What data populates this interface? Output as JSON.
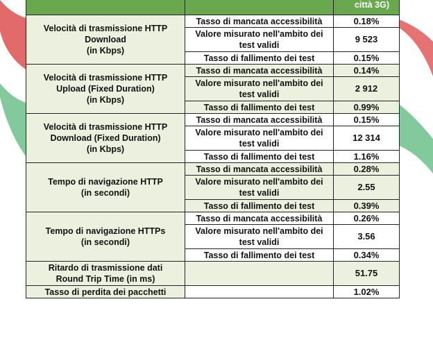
{
  "header": {
    "right_partial": "città 3G)"
  },
  "rows": [
    {
      "metric_lines": [
        "Velocità di trasmissione HTTP",
        "Download",
        "(in Kbps)"
      ],
      "sub": [
        {
          "label": "Tasso di mancata accessibilità",
          "value": "0.18%"
        },
        {
          "label": "Valore misurato nell'ambito dei test validi",
          "value": "9 523"
        },
        {
          "label": "Tasso di fallimento dei test",
          "value": "0.15%"
        }
      ]
    },
    {
      "metric_lines": [
        "Velocità di trasmissione HTTP",
        "Upload (Fixed Duration)",
        "(in Kbps)"
      ],
      "sub": [
        {
          "label": "Tasso di mancata accessibilità",
          "value": "0.14%"
        },
        {
          "label": "Valore misurato nell'ambito dei test validi",
          "value": "2 912"
        },
        {
          "label": "Tasso di fallimento dei test",
          "value": "0.99%"
        }
      ]
    },
    {
      "metric_lines": [
        "Velocità di trasmissione HTTP",
        "Download (Fixed Duration)",
        "(in Kbps)"
      ],
      "sub": [
        {
          "label": "Tasso di mancata accessibilità",
          "value": "0.15%"
        },
        {
          "label": "Valore misurato nell'ambito dei test validi",
          "value": "12 314"
        },
        {
          "label": "Tasso di fallimento dei test",
          "value": "1.16%"
        }
      ]
    },
    {
      "metric_lines": [
        "Tempo di navigazione HTTP",
        "(in secondi)"
      ],
      "sub": [
        {
          "label": "Tasso di mancata accessibilità",
          "value": "0.28%"
        },
        {
          "label": "Valore misurato nell'ambito dei test validi",
          "value": "2.55"
        },
        {
          "label": "Tasso di fallimento dei test",
          "value": "0.39%"
        }
      ]
    },
    {
      "metric_lines": [
        "Tempo di navigazione HTTPs",
        "(in secondi)"
      ],
      "sub": [
        {
          "label": "Tasso di mancata accessibilità",
          "value": "0.26%"
        },
        {
          "label": "Valore misurato nell'ambito dei test validi",
          "value": "3.56"
        },
        {
          "label": "Tasso di fallimento dei test",
          "value": "0.34%"
        }
      ]
    }
  ],
  "single_rows": [
    {
      "metric_lines": [
        "Ritardo di trasmissione dati",
        "Round Trip Time (in ms)"
      ],
      "value": "51.75"
    },
    {
      "metric_lines": [
        "Tasso di perdita dei pacchetti"
      ],
      "value": "1.02%"
    }
  ],
  "colors": {
    "header_green": "#6aa84f",
    "row_shade": "#ebf1de",
    "swoosh_red": "#e05a5a",
    "swoosh_green": "#6cc08a"
  }
}
